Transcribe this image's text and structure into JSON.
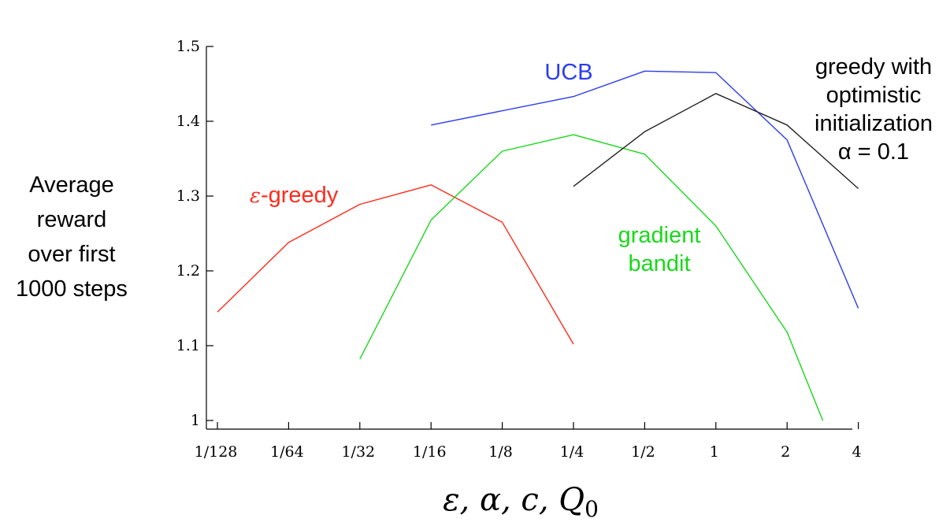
{
  "chart_data": {
    "type": "line",
    "title": "",
    "ylabel_lines": [
      "Average",
      "reward",
      "over first",
      "1000 steps"
    ],
    "xlabel": "ε,  α,  c,  Q0",
    "x_categories": [
      "1/128",
      "1/64",
      "1/32",
      "1/16",
      "1/8",
      "1/4",
      "1/2",
      "1",
      "2",
      "4"
    ],
    "ylim": [
      1.0,
      1.5
    ],
    "yticks": [
      1,
      1.1,
      1.2,
      1.3,
      1.4,
      1.5
    ],
    "ytick_labels": [
      "1",
      "1.1",
      "1.2",
      "1.3",
      "1.4",
      "1.5"
    ],
    "grid": false,
    "series": [
      {
        "name": "ε-greedy",
        "label_prefix": "ε",
        "label_rest": "-greedy",
        "color": "#ff2b1c",
        "x": [
          "1/128",
          "1/64",
          "1/32",
          "1/16",
          "1/8",
          "1/4"
        ],
        "values": [
          1.145,
          1.238,
          1.289,
          1.315,
          1.265,
          1.102
        ]
      },
      {
        "name": "UCB",
        "label_lines": [
          "UCB"
        ],
        "color": "#2b3cf0",
        "x": [
          "1/16",
          "1/4",
          "1/2",
          "1",
          "2",
          "4"
        ],
        "values": [
          1.395,
          1.433,
          1.467,
          1.465,
          1.375,
          1.15
        ]
      },
      {
        "name": "gradient bandit",
        "label_lines": [
          "gradient",
          "bandit"
        ],
        "color": "#19d81a",
        "x": [
          "1/32",
          "1/16",
          "1/8",
          "1/4",
          "1/2",
          "1",
          "2",
          "2.83"
        ],
        "values": [
          1.082,
          1.268,
          1.36,
          1.382,
          1.356,
          1.26,
          1.118,
          1.0
        ]
      },
      {
        "name": "greedy with optimistic initialization α = 0.1",
        "label_lines": [
          "greedy with",
          "optimistic",
          "initialization",
          "α = 0.1"
        ],
        "color": "#222222",
        "x": [
          "1/4",
          "1/2",
          "1",
          "2",
          "4"
        ],
        "values": [
          1.313,
          1.386,
          1.437,
          1.395,
          1.31
        ]
      }
    ]
  }
}
